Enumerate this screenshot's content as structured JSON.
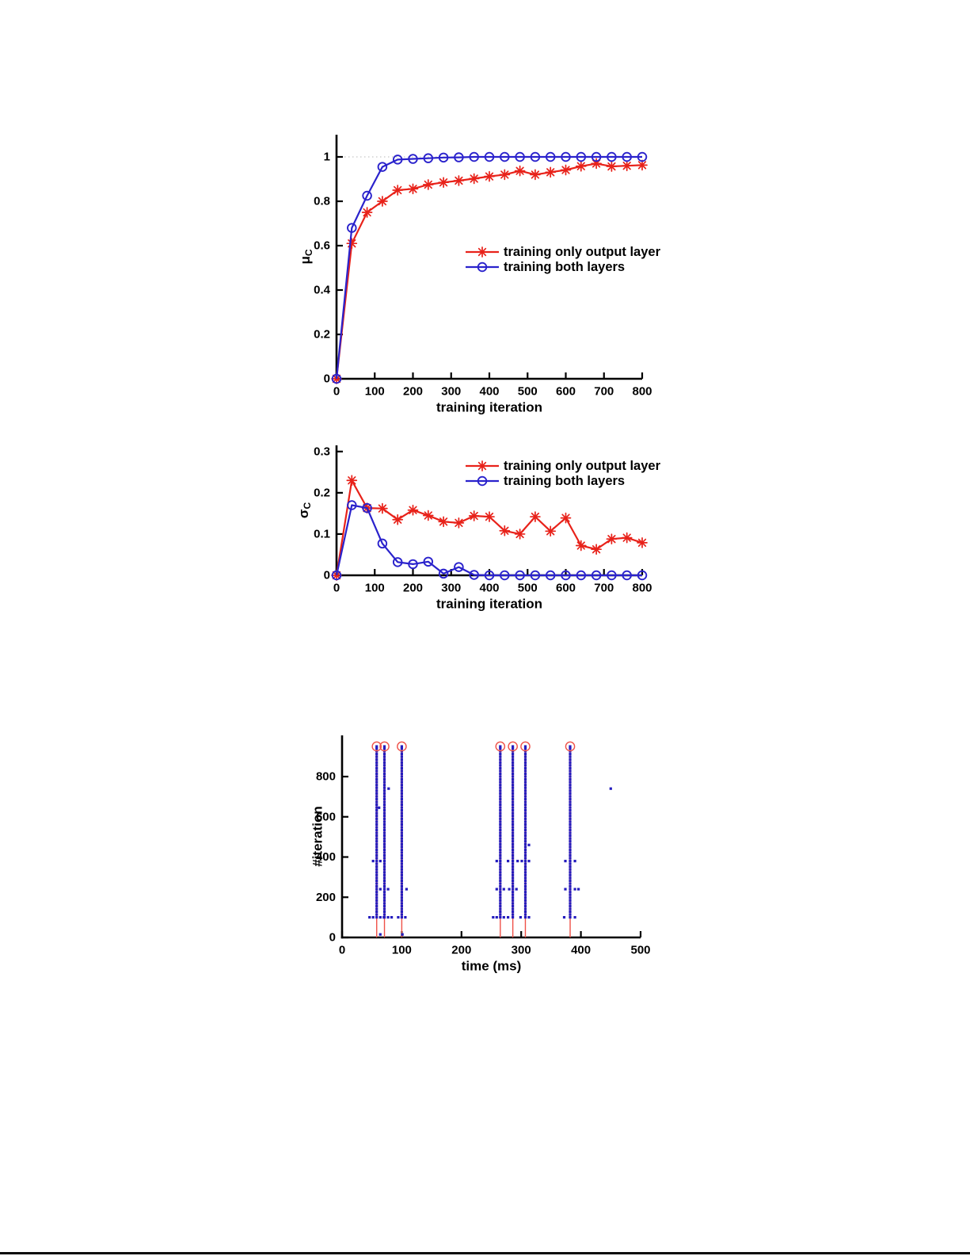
{
  "page": {
    "background": "#ffffff",
    "bottom_border_color": "#0a0a0a"
  },
  "colors": {
    "series_red": "#e8221a",
    "series_blue": "#2a22cc",
    "raster_dot_blue": "#241cbe",
    "raster_line_red": "#ef5148",
    "grid_gray": "#b8b8b8",
    "axis_black": "#000000"
  },
  "chart_data": [
    {
      "id": "mu",
      "type": "line",
      "title": "",
      "xlabel": "training iteration",
      "ylabel": {
        "base": "μ",
        "sub": "C"
      },
      "xlim": [
        0,
        800
      ],
      "ylim": [
        0,
        1.1
      ],
      "xticks": [
        0,
        100,
        200,
        300,
        400,
        500,
        600,
        700,
        800
      ],
      "yticks": [
        0,
        0.2,
        0.4,
        0.6,
        0.8,
        1
      ],
      "ytick_labels": [
        "0",
        "0.2",
        "0.4",
        "0.6",
        "0.8",
        "1"
      ],
      "grid_y": [
        1
      ],
      "grid_style": "dotted",
      "x": [
        0,
        40,
        80,
        120,
        160,
        200,
        240,
        280,
        320,
        360,
        400,
        440,
        480,
        520,
        560,
        600,
        640,
        680,
        720,
        760,
        800
      ],
      "series": [
        {
          "name": "training only output layer",
          "marker": "asterisk",
          "color": "#e8221a",
          "values": [
            0,
            0.61,
            0.75,
            0.8,
            0.85,
            0.856,
            0.875,
            0.885,
            0.893,
            0.902,
            0.912,
            0.92,
            0.937,
            0.92,
            0.931,
            0.941,
            0.958,
            0.97,
            0.957,
            0.96,
            0.963
          ]
        },
        {
          "name": "training both layers",
          "marker": "circle",
          "color": "#2a22cc",
          "values": [
            0,
            0.68,
            0.825,
            0.955,
            0.988,
            0.991,
            0.994,
            0.997,
            0.998,
            1,
            1,
            1,
            1,
            1,
            1,
            1,
            1,
            1,
            1,
            1,
            1
          ]
        }
      ],
      "legend": {
        "position": "center-right",
        "entries": [
          "training only output layer",
          "training both layers"
        ]
      }
    },
    {
      "id": "sigma",
      "type": "line",
      "title": "",
      "xlabel": "training iteration",
      "ylabel": {
        "base": "σ",
        "sub": "C"
      },
      "xlim": [
        0,
        800
      ],
      "ylim": [
        0,
        0.315
      ],
      "xticks": [
        0,
        100,
        200,
        300,
        400,
        500,
        600,
        700,
        800
      ],
      "yticks": [
        0,
        0.1,
        0.2,
        0.3
      ],
      "ytick_labels": [
        "0",
        "0.1",
        "0.2",
        "0.3"
      ],
      "grid_y": [],
      "x": [
        0,
        40,
        80,
        120,
        160,
        200,
        240,
        280,
        320,
        360,
        400,
        440,
        480,
        520,
        560,
        600,
        640,
        680,
        720,
        760,
        800
      ],
      "series": [
        {
          "name": "training only output layer",
          "marker": "asterisk",
          "color": "#e8221a",
          "values": [
            0,
            0.23,
            0.163,
            0.162,
            0.135,
            0.158,
            0.145,
            0.13,
            0.127,
            0.144,
            0.142,
            0.108,
            0.1,
            0.142,
            0.107,
            0.139,
            0.072,
            0.063,
            0.088,
            0.091,
            0.079
          ]
        },
        {
          "name": "training both layers",
          "marker": "circle",
          "color": "#2a22cc",
          "values": [
            0,
            0.17,
            0.163,
            0.077,
            0.032,
            0.027,
            0.033,
            0.004,
            0.02,
            0.001,
            0,
            0,
            0,
            0,
            0,
            0,
            0,
            0,
            0,
            0,
            0
          ]
        }
      ],
      "legend": {
        "position": "top-right",
        "entries": [
          "training only output layer",
          "training both layers"
        ]
      }
    },
    {
      "id": "raster",
      "type": "scatter",
      "title": "",
      "xlabel": "time (ms)",
      "ylabel": "#iteration",
      "xlim": [
        0,
        500
      ],
      "ylim": [
        0,
        1005
      ],
      "xticks": [
        0,
        100,
        200,
        300,
        400,
        500
      ],
      "yticks": [
        0,
        200,
        400,
        600,
        800
      ],
      "spike_times_ms": [
        58,
        71,
        100,
        265,
        286,
        307,
        382
      ],
      "column_dots": {
        "iter_start": 100,
        "iter_end": 950,
        "iter_step": 14
      },
      "top_circle_iter": 950,
      "stimulus_line": {
        "from_iter": 0,
        "to_iter": 950
      },
      "dot_color": "#241cbe",
      "line_color": "#ef5148",
      "extra_dots": [
        [
          46,
          100
        ],
        [
          52,
          100
        ],
        [
          64,
          100
        ],
        [
          70,
          100
        ],
        [
          77,
          100
        ],
        [
          83,
          100
        ],
        [
          94,
          100
        ],
        [
          106,
          100
        ],
        [
          253,
          100
        ],
        [
          259,
          100
        ],
        [
          271,
          100
        ],
        [
          278,
          100
        ],
        [
          299,
          100
        ],
        [
          313,
          100
        ],
        [
          372,
          100
        ],
        [
          390,
          100
        ],
        [
          64,
          240
        ],
        [
          77,
          240
        ],
        [
          108,
          240
        ],
        [
          259,
          240
        ],
        [
          271,
          240
        ],
        [
          280,
          240
        ],
        [
          292,
          240
        ],
        [
          374,
          240
        ],
        [
          390,
          240
        ],
        [
          396,
          240
        ],
        [
          52,
          380
        ],
        [
          64,
          380
        ],
        [
          259,
          380
        ],
        [
          278,
          380
        ],
        [
          294,
          380
        ],
        [
          301,
          380
        ],
        [
          313,
          380
        ],
        [
          374,
          380
        ],
        [
          390,
          380
        ],
        [
          313,
          460
        ],
        [
          62,
          645
        ],
        [
          78,
          740
        ],
        [
          450,
          740
        ],
        [
          64,
          15
        ],
        [
          101,
          15
        ]
      ]
    }
  ]
}
